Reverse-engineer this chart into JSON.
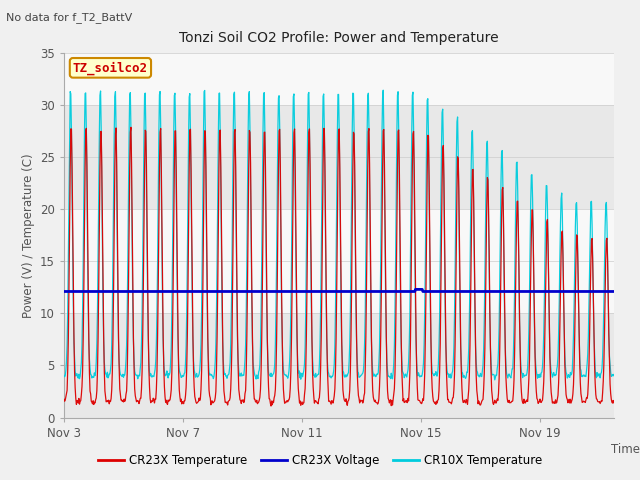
{
  "title": "Tonzi Soil CO2 Profile: Power and Temperature",
  "subtitle": "No data for f_T2_BattV",
  "ylabel": "Power (V) / Temperature (C)",
  "xlabel": "Time",
  "ylim": [
    0,
    35
  ],
  "voltage_value": 12.1,
  "legend_labels": [
    "CR23X Temperature",
    "CR23X Voltage",
    "CR10X Temperature"
  ],
  "box_label": "TZ_soilco2",
  "box_color": "#ffffcc",
  "box_edge_color": "#cc8800",
  "band_colors": [
    "#e8e8e8",
    "#f8f8f8"
  ],
  "cr23x_color": "#dd0000",
  "cr10x_color": "#00ccdd",
  "voltage_color": "#0000cc",
  "plot_bg_color": "#ffffff",
  "fig_bg_color": "#f0f0f0",
  "tick_label_color": "#555555",
  "spine_color": "#aaaaaa"
}
